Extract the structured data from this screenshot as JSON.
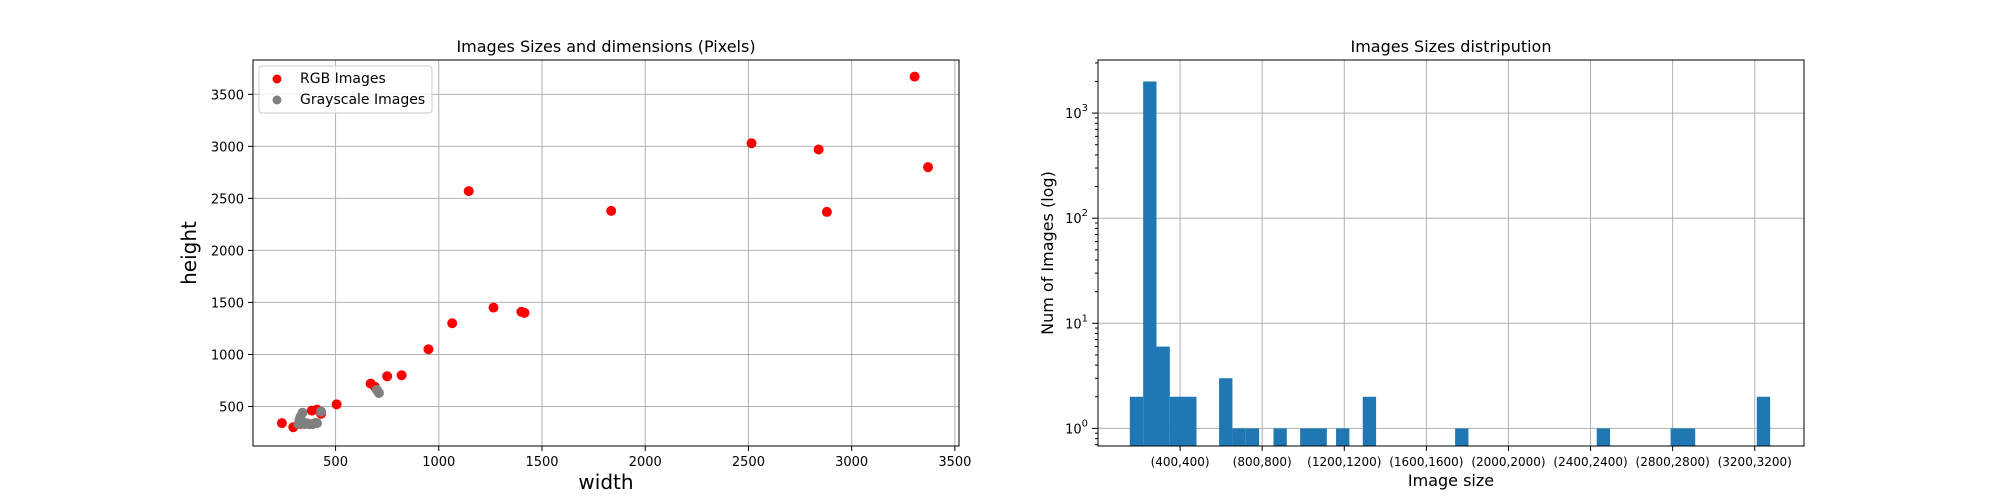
{
  "chart_data": [
    {
      "type": "scatter",
      "title": "Images Sizes and dimensions (Pixels)",
      "xlabel": "width",
      "ylabel": "height",
      "xlim": [
        100,
        3520
      ],
      "ylim": [
        120,
        3830
      ],
      "xticks": [
        500,
        1000,
        1500,
        2000,
        2500,
        3000,
        3500
      ],
      "yticks": [
        500,
        1000,
        1500,
        2000,
        2500,
        3000,
        3500
      ],
      "grid": true,
      "legend": "top-left",
      "series": [
        {
          "name": "RGB Images",
          "color": "#ff0000",
          "x": [
            240,
            295,
            330,
            385,
            410,
            430,
            505,
            670,
            690,
            750,
            820,
            950,
            1065,
            1145,
            1265,
            1400,
            1415,
            1835,
            2515,
            2840,
            2880,
            3305,
            3370
          ],
          "y": [
            340,
            300,
            330,
            460,
            470,
            430,
            520,
            720,
            690,
            790,
            800,
            1050,
            1300,
            2570,
            1450,
            1410,
            1400,
            2380,
            3030,
            2970,
            2370,
            3670,
            2800
          ]
        },
        {
          "name": "Grayscale Images",
          "color": "#808080",
          "x": [
            320,
            325,
            330,
            340,
            350,
            360,
            370,
            380,
            390,
            400,
            410,
            430,
            700,
            710
          ],
          "y": [
            330,
            370,
            400,
            440,
            330,
            340,
            330,
            330,
            330,
            340,
            340,
            450,
            660,
            630
          ]
        }
      ]
    },
    {
      "type": "bar",
      "title": "Images Sizes distripution",
      "xlabel": "Image size",
      "ylabel": "Num of Images (log)",
      "yscale": "log",
      "ylim": [
        0.68,
        3200
      ],
      "xlim": [
        0,
        3440
      ],
      "grid": true,
      "tick_labels": [
        "(400,400)",
        "(800,800)",
        "(1200,1200)",
        "(1600,1600)",
        "(2000,2000)",
        "(2400,2400)",
        "(2800,2800)",
        "(3200,3200)"
      ],
      "tick_positions": [
        400,
        800,
        1200,
        1600,
        2000,
        2400,
        2800,
        3200
      ],
      "color": "#1f77b4",
      "bins": [
        {
          "x0": 155,
          "x1": 220,
          "count": 2
        },
        {
          "x0": 220,
          "x1": 285,
          "count": 2000
        },
        {
          "x0": 285,
          "x1": 350,
          "count": 6
        },
        {
          "x0": 350,
          "x1": 480,
          "count": 2
        },
        {
          "x0": 590,
          "x1": 655,
          "count": 3
        },
        {
          "x0": 655,
          "x1": 720,
          "count": 1
        },
        {
          "x0": 720,
          "x1": 785,
          "count": 1
        },
        {
          "x0": 855,
          "x1": 920,
          "count": 1
        },
        {
          "x0": 985,
          "x1": 1115,
          "count": 1
        },
        {
          "x0": 1160,
          "x1": 1225,
          "count": 1
        },
        {
          "x0": 1290,
          "x1": 1355,
          "count": 2
        },
        {
          "x0": 1740,
          "x1": 1805,
          "count": 1
        },
        {
          "x0": 2430,
          "x1": 2495,
          "count": 1
        },
        {
          "x0": 2790,
          "x1": 2910,
          "count": 1
        },
        {
          "x0": 3210,
          "x1": 3275,
          "count": 2
        }
      ]
    }
  ]
}
